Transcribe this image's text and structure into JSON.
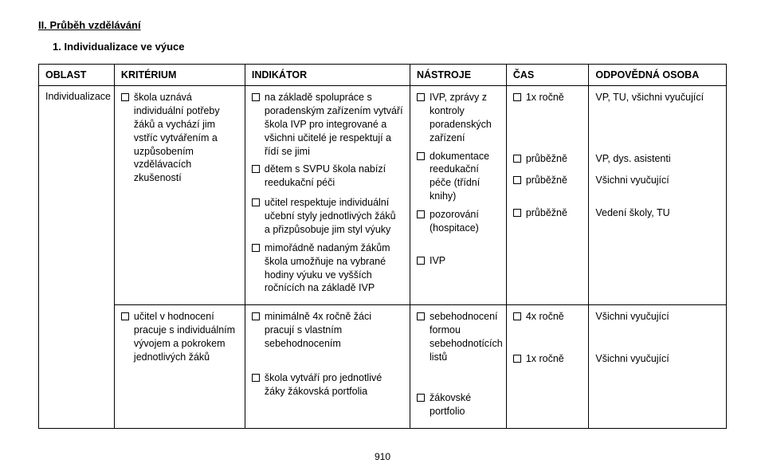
{
  "section_title": "II. Průběh vzdělávání",
  "sub_title": "1. Individualizace ve výuce",
  "headers": {
    "oblast": "OBLAST",
    "kriterium": "KRITÉRIUM",
    "indikator": "INDIKÁTOR",
    "nastroje": "NÁSTROJE",
    "cas": "ČAS",
    "osoba": "ODPOVĚDNÁ OSOBA"
  },
  "row1": {
    "oblast": "Individualizace",
    "kriterium": {
      "k1": "škola uznává individuální potřeby žáků a vychází jim vstříc vytvářením a uzpůsobením vzdělávacích zkušeností"
    },
    "indikator": {
      "i1": "na základě spolupráce s poradenským zařízením vytváří škola IVP pro integrované a všichni učitelé je respektují a řídí se jimi",
      "i2": "dětem s SVPU škola nabízí reedukační péči",
      "i3": "učitel respektuje individuální učební styly jednotlivých žáků a přizpůsobuje jim styl výuky",
      "i4": "mimořádně nadaným žákům škola umožňuje na vybrané hodiny výuku ve vyšších ročnících na základě IVP"
    },
    "nastroje": {
      "n1": "IVP, zprávy z kontroly poradenských zařízení",
      "n2": "dokumentace reedukační péče (třídní knihy)",
      "n3": "pozorování (hospitace)",
      "n4": "IVP"
    },
    "cas": {
      "c1": "1x ročně",
      "c2": "průběžně",
      "c3": "průběžně",
      "c4": "průběžně"
    },
    "osoba": {
      "o1": "VP, TU, všichni vyučující",
      "o2": "VP, dys. asistenti",
      "o3": "Všichni vyučující",
      "o4": "Vedení školy, TU"
    }
  },
  "row2": {
    "kriterium": {
      "k1": "učitel v hodnocení pracuje s individuálním vývojem a pokrokem jednotlivých žáků"
    },
    "indikator": {
      "i1": "minimálně 4x ročně žáci pracují s vlastním sebehodnocením",
      "i2": "škola vytváří pro jednotlivé žáky žákovská portfolia"
    },
    "nastroje": {
      "n1": "sebehodnocení formou sebehodnotících listů",
      "n2": "žákovské portfolio"
    },
    "cas": {
      "c1": "4x ročně",
      "c2": "1x ročně"
    },
    "osoba": {
      "o1": "Všichni vyučující",
      "o2": "Všichni vyučující"
    }
  },
  "page_number": "910"
}
